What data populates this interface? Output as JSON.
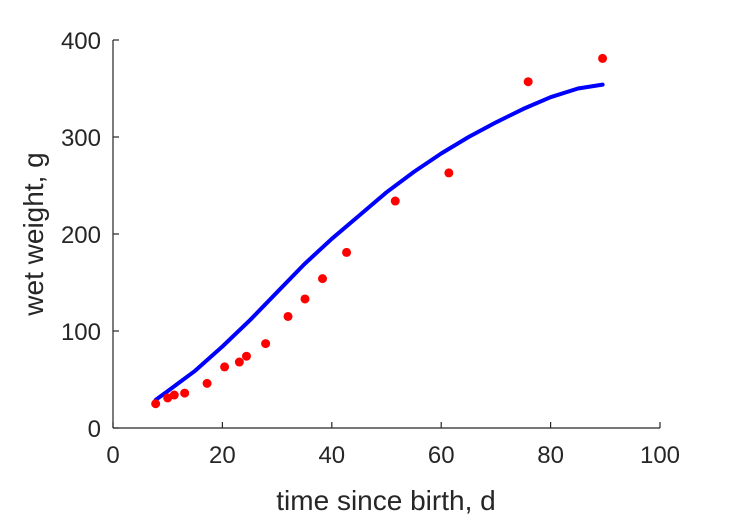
{
  "chart_data": {
    "type": "scatter",
    "title": "",
    "xlabel": "time since birth, d",
    "ylabel": "wet weight, g",
    "xlim": [
      0,
      100
    ],
    "ylim": [
      0,
      400
    ],
    "xticks": [
      0,
      20,
      40,
      60,
      80,
      100
    ],
    "yticks": [
      0,
      100,
      200,
      300,
      400
    ],
    "grid": false,
    "series": [
      {
        "kind": "scatter",
        "color": "#ff0000",
        "x": [
          7.8,
          10.0,
          11.2,
          13.1,
          17.2,
          20.4,
          23.1,
          24.4,
          27.9,
          32.0,
          35.1,
          38.3,
          42.7,
          51.6,
          61.4,
          75.9,
          89.5
        ],
        "y": [
          25,
          31,
          34,
          36,
          46,
          63,
          68,
          74,
          87,
          115,
          133,
          154,
          181,
          234,
          263,
          357,
          381
        ]
      },
      {
        "kind": "line",
        "color": "#0000ff",
        "x": [
          7.8,
          10,
          15,
          20,
          25,
          30,
          35,
          40,
          45,
          50,
          55,
          60,
          65,
          70,
          75,
          80,
          85,
          89.5
        ],
        "y": [
          29,
          38,
          59,
          84,
          111,
          140,
          169,
          195,
          219,
          243,
          264,
          283,
          300,
          315,
          329,
          341,
          350,
          354
        ]
      }
    ]
  }
}
